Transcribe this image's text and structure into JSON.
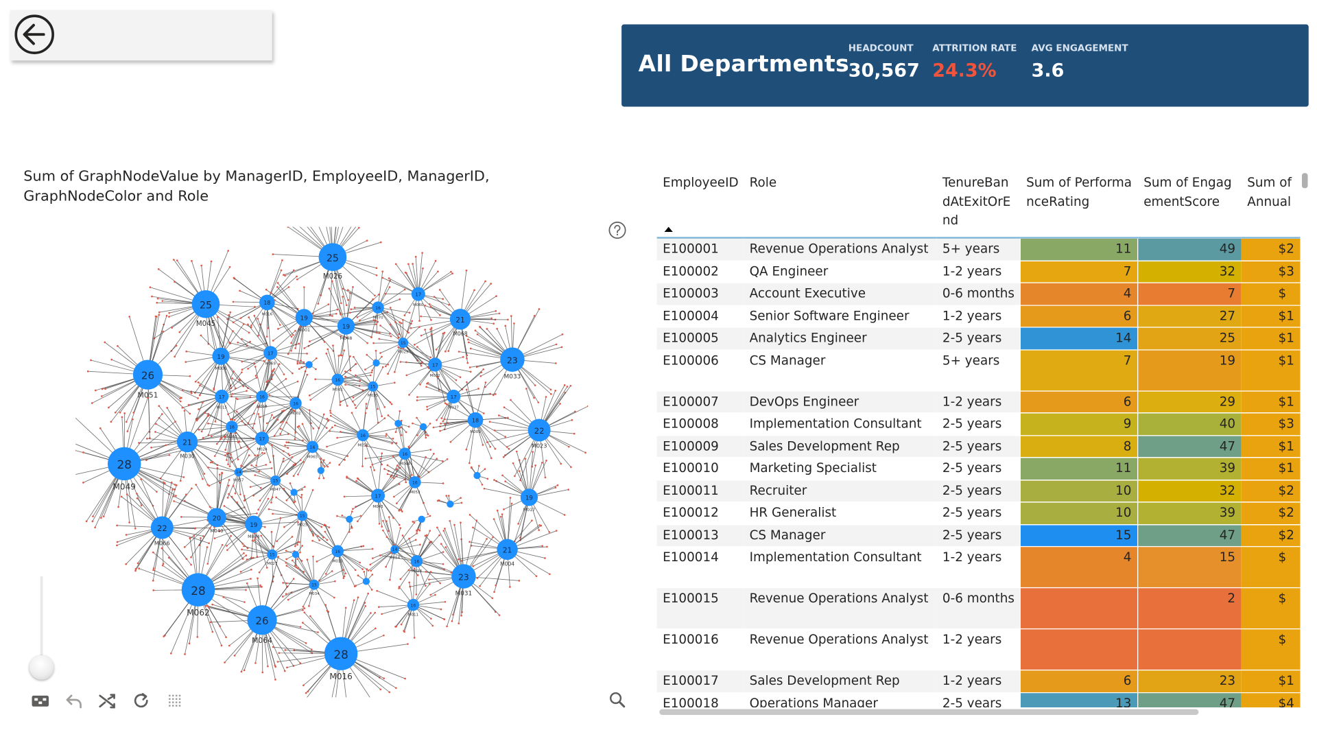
{
  "kpi_card": {
    "title": "All Departments",
    "kpis": [
      {
        "label": "HEADCOUNT",
        "value": "30,567",
        "color": "#ffffff"
      },
      {
        "label": "ATTRITION RATE",
        "value": "24.3%",
        "color": "#f0543c"
      },
      {
        "label": "AVG ENGAGEMENT",
        "value": "3.6",
        "color": "#ffffff"
      }
    ]
  },
  "icons": {
    "back": "back-arrow-icon",
    "help": "question-circle-icon",
    "zoom": "magnifier-icon",
    "toolbar": [
      "screenshot-icon",
      "undo-icon",
      "shuffle-icon",
      "refresh-icon",
      "grid-icon"
    ]
  },
  "graph": {
    "title": "Sum of GraphNodeValue by ManagerID, EmployeeID, ManagerID, GraphNodeColor and Role",
    "node_color": "#1e90ff",
    "edge_color": "#444444",
    "leaf_color": "#e05a4a",
    "nodes": [
      {
        "label": "M026",
        "value": 25
      },
      {
        "label": "M045",
        "value": 25
      },
      {
        "label": "M016",
        "value": 18
      },
      {
        "label": "M001",
        "value": 19
      },
      {
        "label": "M048",
        "value": 19
      },
      {
        "label": "M070",
        "value": 16
      },
      {
        "label": "M060",
        "value": 17
      },
      {
        "label": "M068",
        "value": 21
      },
      {
        "label": "M051",
        "value": 26
      },
      {
        "label": "M006",
        "value": 19
      },
      {
        "label": "M069",
        "value": 17
      },
      {
        "label": "M029",
        "value": 15
      },
      {
        "label": "M032",
        "value": 17
      },
      {
        "label": "M033",
        "value": 23
      },
      {
        "label": "M015",
        "value": 17
      },
      {
        "label": "M018",
        "value": 16
      },
      {
        "label": "M002",
        "value": 16
      },
      {
        "label": "M041",
        "value": 16
      },
      {
        "label": "M035",
        "value": 15
      },
      {
        "label": "M037",
        "value": 17
      },
      {
        "label": "M009",
        "value": 18
      },
      {
        "label": "M023",
        "value": 22
      },
      {
        "label": "M030",
        "value": 21
      },
      {
        "label": "M060",
        "value": 16
      },
      {
        "label": "M024",
        "value": 17
      },
      {
        "label": "M065",
        "value": 16
      },
      {
        "label": "M058",
        "value": 16
      },
      {
        "label": "M044",
        "value": 16
      },
      {
        "label": "M049",
        "value": 28
      },
      {
        "label": "M057",
        "value": 14
      },
      {
        "label": "M047",
        "value": 15
      },
      {
        "label": "M040",
        "value": 20
      },
      {
        "label": "M043",
        "value": 17
      },
      {
        "label": "M053",
        "value": 16
      },
      {
        "label": "M017",
        "value": 19
      },
      {
        "label": "M066",
        "value": 22
      },
      {
        "label": "M062",
        "value": 28
      },
      {
        "label": "M044",
        "value": 19
      },
      {
        "label": "M025",
        "value": 15
      },
      {
        "label": "M027",
        "value": 15
      },
      {
        "label": "M010",
        "value": 16
      },
      {
        "label": "M054",
        "value": 14
      },
      {
        "label": "M028",
        "value": 16
      },
      {
        "label": "M004",
        "value": 21
      },
      {
        "label": "M031",
        "value": 23
      },
      {
        "label": "M064",
        "value": 26
      },
      {
        "label": "M034",
        "value": 15
      },
      {
        "label": "M011",
        "value": 16
      },
      {
        "label": "M016",
        "value": 28
      }
    ]
  },
  "table": {
    "columns": [
      "EmployeeID",
      "Role",
      "TenureBandAtExitOrEnd",
      "Sum of PerformanceRating",
      "Sum of EngagementScore",
      "Sum of Annual"
    ],
    "rows": [
      {
        "id": "E100001",
        "role": "Revenue Operations Analyst",
        "tenure": "5+ years",
        "perf": "11",
        "eng": "49",
        "annual": "$2",
        "perf_color": "#8aa865",
        "eng_color": "#5b9aa0",
        "annual_color": "#e9a30f"
      },
      {
        "id": "E100002",
        "role": "QA Engineer",
        "tenure": "1-2 years",
        "perf": "7",
        "eng": "32",
        "annual": "$3",
        "perf_color": "#e5a60f",
        "eng_color": "#d4b000",
        "annual_color": "#e9a30f"
      },
      {
        "id": "E100003",
        "role": "Account Executive",
        "tenure": "0-6 months",
        "perf": "4",
        "eng": "7",
        "annual": "$",
        "perf_color": "#e5862a",
        "eng_color": "#e87c30",
        "annual_color": "#e9a30f"
      },
      {
        "id": "E100004",
        "role": "Senior Software Engineer",
        "tenure": "1-2 years",
        "perf": "6",
        "eng": "27",
        "annual": "$1",
        "perf_color": "#e59a1c",
        "eng_color": "#e0a812",
        "annual_color": "#e9a30f"
      },
      {
        "id": "E100005",
        "role": "Analytics Engineer",
        "tenure": "2-5 years",
        "perf": "14",
        "eng": "25",
        "annual": "$1",
        "perf_color": "#2f93d6",
        "eng_color": "#e2a315",
        "annual_color": "#e9a30f"
      },
      {
        "id": "E100006",
        "role": "CS Manager",
        "tenure": "5+ years",
        "perf": "7",
        "eng": "19",
        "annual": "$1",
        "perf_color": "#e0aa12",
        "eng_color": "#e59a1c",
        "annual_color": "#e9a30f",
        "tall": true
      },
      {
        "id": "E100007",
        "role": "DevOps Engineer",
        "tenure": "1-2 years",
        "perf": "6",
        "eng": "29",
        "annual": "$1",
        "perf_color": "#e59a1c",
        "eng_color": "#dcae10",
        "annual_color": "#e9a30f"
      },
      {
        "id": "E100008",
        "role": "Implementation Consultant",
        "tenure": "2-5 years",
        "perf": "9",
        "eng": "40",
        "annual": "$3",
        "perf_color": "#c5b21c",
        "eng_color": "#aab13a",
        "annual_color": "#e9a30f"
      },
      {
        "id": "E100009",
        "role": "Sales Development Rep",
        "tenure": "2-5 years",
        "perf": "8",
        "eng": "47",
        "annual": "$1",
        "perf_color": "#d9ae10",
        "eng_color": "#6f9f86",
        "annual_color": "#e9a30f"
      },
      {
        "id": "E100010",
        "role": "Marketing Specialist",
        "tenure": "2-5 years",
        "perf": "11",
        "eng": "39",
        "annual": "$1",
        "perf_color": "#8aa865",
        "eng_color": "#b2b131",
        "annual_color": "#e9a30f"
      },
      {
        "id": "E100011",
        "role": "Recruiter",
        "tenure": "2-5 years",
        "perf": "10",
        "eng": "32",
        "annual": "$2",
        "perf_color": "#a8ae40",
        "eng_color": "#d4b000",
        "annual_color": "#e9a30f"
      },
      {
        "id": "E100012",
        "role": "HR Generalist",
        "tenure": "2-5 years",
        "perf": "10",
        "eng": "39",
        "annual": "$2",
        "perf_color": "#a8ae40",
        "eng_color": "#b2b131",
        "annual_color": "#e9a30f"
      },
      {
        "id": "E100013",
        "role": "CS Manager",
        "tenure": "2-5 years",
        "perf": "15",
        "eng": "47",
        "annual": "$2",
        "perf_color": "#1e8ef0",
        "eng_color": "#6f9f86",
        "annual_color": "#e9a30f"
      },
      {
        "id": "E100014",
        "role": "Implementation Consultant",
        "tenure": "1-2 years",
        "perf": "4",
        "eng": "15",
        "annual": "$",
        "perf_color": "#e5862a",
        "eng_color": "#e5902a",
        "annual_color": "#e9a30f",
        "tall": true
      },
      {
        "id": "E100015",
        "role": "Revenue Operations Analyst",
        "tenure": "0-6 months",
        "perf": "",
        "eng": "2",
        "annual": "$",
        "perf_color": "#e8703a",
        "eng_color": "#e8703a",
        "annual_color": "#e9a30f",
        "tall": true
      },
      {
        "id": "E100016",
        "role": "Revenue Operations Analyst",
        "tenure": "1-2 years",
        "perf": "",
        "eng": "",
        "annual": "$",
        "perf_color": "#e8703a",
        "eng_color": "#e8703a",
        "annual_color": "#e9a30f",
        "tall": true
      },
      {
        "id": "E100017",
        "role": "Sales Development Rep",
        "tenure": "1-2 years",
        "perf": "6",
        "eng": "23",
        "annual": "$1",
        "perf_color": "#e59a1c",
        "eng_color": "#e2a315",
        "annual_color": "#e9a30f"
      },
      {
        "id": "E100018",
        "role": "Operations Manager",
        "tenure": "2-5 years",
        "perf": "13",
        "eng": "47",
        "annual": "$4",
        "perf_color": "#4a9ab8",
        "eng_color": "#6f9f86",
        "annual_color": "#e9a30f"
      }
    ]
  }
}
